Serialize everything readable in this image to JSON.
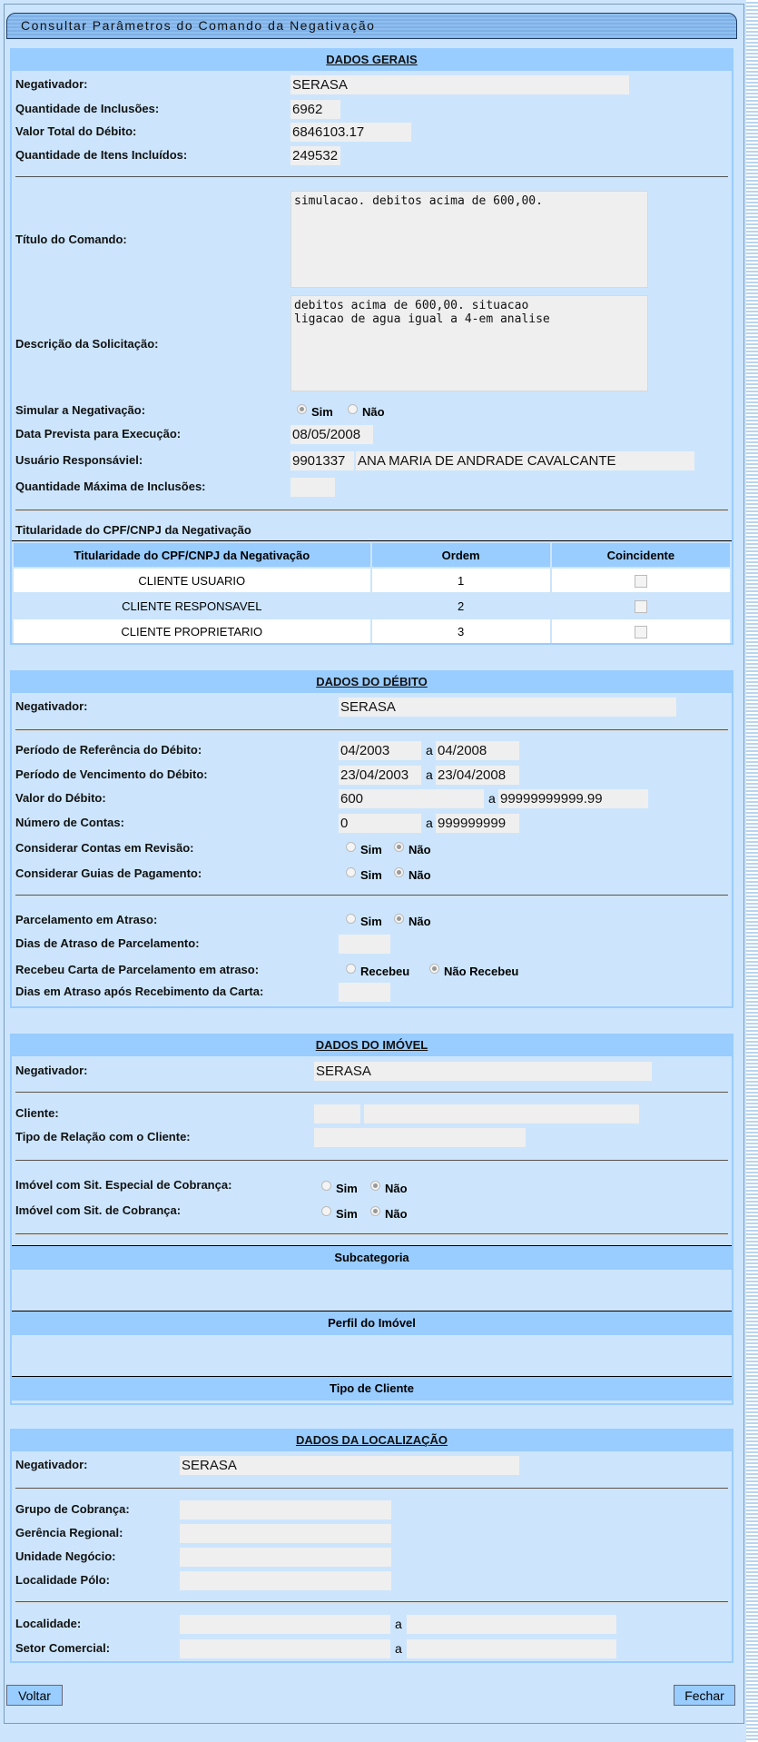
{
  "title": "Consultar Parâmetros do Comando da Negativação",
  "gerais": {
    "header": "DADOS GERAIS",
    "negativador_label": "Negativador:",
    "negativador": "SERASA",
    "qtd_inclusoes_label": "Quantidade de Inclusões:",
    "qtd_inclusoes": "6962",
    "valor_total_label": "Valor Total do Débito:",
    "valor_total": "6846103.17",
    "qtd_itens_label": "Quantidade de Itens Incluídos:",
    "qtd_itens": "249532",
    "titulo_label": "Título do Comando:",
    "titulo": "simulacao. debitos acima de 600,00.",
    "descricao_label": "Descrição da Solicitação:",
    "descricao": "debitos acima de 600,00. situacao\nligacao de agua igual a 4-em analise",
    "simular_label": "Simular a Negativação:",
    "sim": "Sim",
    "nao": "Não",
    "simular": "Sim",
    "data_label": "Data Prevista para Execução:",
    "data": "08/05/2008",
    "usuario_label": "Usuário Responsáviel:",
    "usuario_id": "9901337",
    "usuario_nome": "ANA MARIA DE ANDRADE CAVALCANTE",
    "qtd_max_label": "Quantidade Máxima de Inclusões:",
    "qtd_max": "",
    "titularidade_label": "Titularidade do CPF/CNPJ da Negativação",
    "table": {
      "headers": [
        "Titularidade do CPF/CNPJ da Negativação",
        "Ordem",
        "Coincidente"
      ],
      "rows": [
        {
          "titularidade": "CLIENTE USUARIO",
          "ordem": "1",
          "coincidente": false
        },
        {
          "titularidade": "CLIENTE RESPONSAVEL",
          "ordem": "2",
          "coincidente": false
        },
        {
          "titularidade": "CLIENTE PROPRIETARIO",
          "ordem": "3",
          "coincidente": false
        }
      ]
    }
  },
  "debito": {
    "header": "DADOS DO DÉBITO",
    "negativador_label": "Negativador:",
    "negativador": "SERASA",
    "periodo_ref_label": "Período de Referência do Débito:",
    "periodo_ref_ini": "04/2003",
    "periodo_ref_fim": "04/2008",
    "periodo_venc_label": "Período de Vencimento do Débito:",
    "periodo_venc_ini": "23/04/2003",
    "periodo_venc_fim": "23/04/2008",
    "valor_label": "Valor do Débito:",
    "valor_ini": "600",
    "valor_fim": "99999999999.99",
    "num_contas_label": "Número de Contas:",
    "num_contas_ini": "0",
    "num_contas_fim": "999999999",
    "a": "a",
    "contas_revisao_label": "Considerar Contas em Revisão:",
    "contas_revisao": "Não",
    "guias_label": "Considerar Guias de Pagamento:",
    "guias": "Não",
    "parcelamento_label": "Parcelamento em Atraso:",
    "parcelamento": "Não",
    "dias_atraso_label": "Dias de Atraso de Parcelamento:",
    "dias_atraso": "",
    "recebeu_label": "Recebeu Carta de Parcelamento em atraso:",
    "recebeu_opt": "Recebeu",
    "nao_recebeu_opt": "Não Recebeu",
    "recebeu": "Não Recebeu",
    "dias_apos_label": "Dias em Atraso após Recebimento da Carta:",
    "dias_apos": "",
    "sim": "Sim",
    "nao": "Não"
  },
  "imovel": {
    "header": "DADOS DO IMÓVEL",
    "negativador_label": "Negativador:",
    "negativador": "SERASA",
    "cliente_label": "Cliente:",
    "cliente_id": "",
    "cliente_nome": "",
    "tipo_relacao_label": "Tipo de Relação com o Cliente:",
    "tipo_relacao": "",
    "sit_especial_label": "Imóvel com Sit. Especial de Cobrança:",
    "sit_especial": "Não",
    "sit_cobranca_label": "Imóvel com Sit. de Cobrança:",
    "sit_cobranca": "Não",
    "sim": "Sim",
    "nao": "Não",
    "subcategoria": "Subcategoria",
    "perfil": "Perfil do Imóvel",
    "tipo_cliente": "Tipo de Cliente"
  },
  "localizacao": {
    "header": "DADOS DA LOCALIZAÇÃO",
    "negativador_label": "Negativador:",
    "negativador": "SERASA",
    "grupo_label": "Grupo de Cobrança:",
    "grupo": "",
    "gerencia_label": "Gerência Regional:",
    "gerencia": "",
    "unidade_label": "Unidade Negócio:",
    "unidade": "",
    "polo_label": "Localidade Pólo:",
    "polo": "",
    "localidade_label": "Localidade:",
    "localidade_ini": "",
    "localidade_fim": "",
    "setor_label": "Setor Comercial:",
    "setor_ini": "",
    "setor_fim": "",
    "a": "a"
  },
  "buttons": {
    "voltar": "Voltar",
    "fechar": "Fechar"
  }
}
